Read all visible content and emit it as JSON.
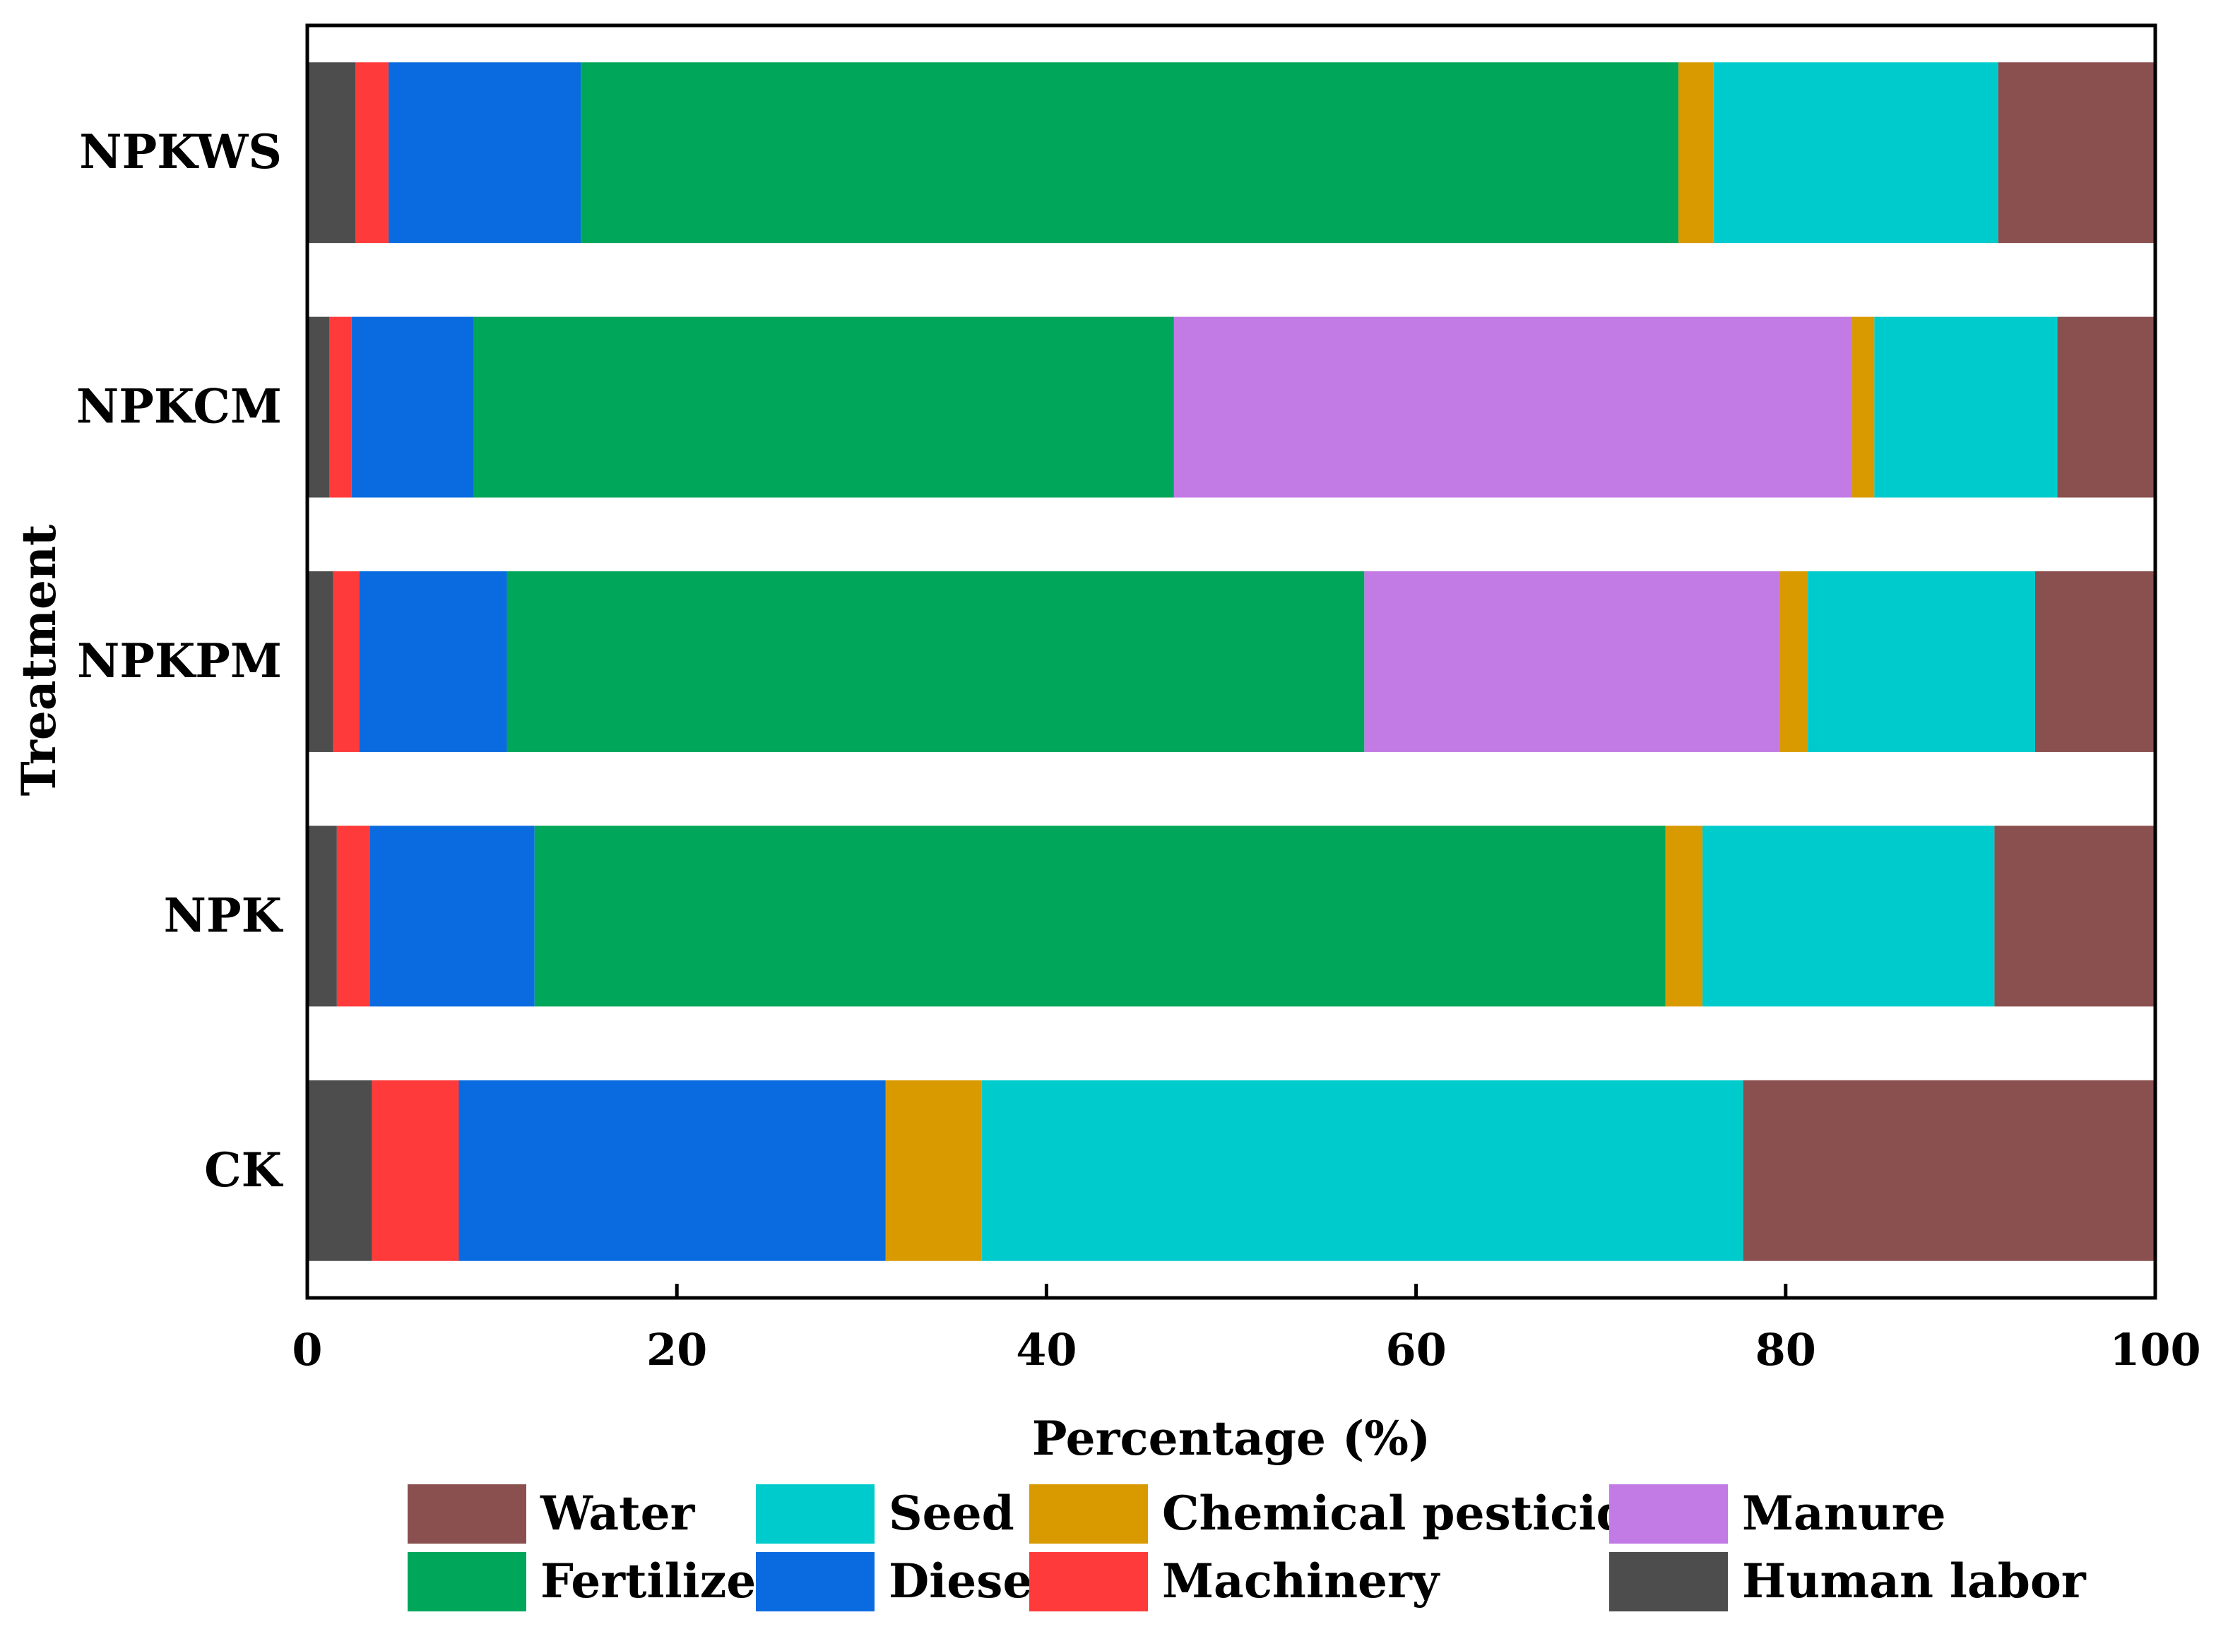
{
  "chart_data": {
    "type": "bar",
    "orientation": "horizontal",
    "stacked": true,
    "title": "",
    "xlabel": "Percentage (%)",
    "ylabel": "Treatment",
    "xlim": [
      0,
      100
    ],
    "xticks": [
      0,
      20,
      40,
      60,
      80,
      100
    ],
    "grid": false,
    "legend_position": "bottom",
    "categories": [
      "NPKWS",
      "NPKCM",
      "NPKPM",
      "NPK",
      "CK"
    ],
    "series": [
      {
        "name": "Human labor",
        "color": "#4d4d4d",
        "values": [
          2.6,
          1.2,
          1.4,
          1.6,
          3.5
        ]
      },
      {
        "name": "Machinery",
        "color": "#ff3a3a",
        "values": [
          1.8,
          1.2,
          1.4,
          1.8,
          4.7
        ]
      },
      {
        "name": "Diesel",
        "color": "#0a6be0",
        "values": [
          10.4,
          6.6,
          8.0,
          8.9,
          23.1
        ]
      },
      {
        "name": "Fertilizer",
        "color": "#00a65a",
        "values": [
          59.4,
          37.9,
          46.4,
          61.2,
          0
        ]
      },
      {
        "name": "Manure",
        "color": "#c27ae5",
        "values": [
          0,
          36.7,
          22.5,
          0,
          0
        ]
      },
      {
        "name": "Chemical pesticides",
        "color": "#d99a00",
        "values": [
          1.9,
          1.2,
          1.5,
          2.0,
          5.2
        ]
      },
      {
        "name": "Seed",
        "color": "#00cbcc",
        "values": [
          15.4,
          9.9,
          12.3,
          15.8,
          41.2
        ]
      },
      {
        "name": "Water",
        "color": "#8a4f4f",
        "values": [
          8.5,
          5.3,
          6.5,
          8.7,
          22.3
        ]
      }
    ],
    "legend_order": [
      "Water",
      "Seed",
      "Chemical pesticides",
      "Manure",
      "Fertilizer",
      "Diesel",
      "Machinery",
      "Human labor"
    ]
  }
}
